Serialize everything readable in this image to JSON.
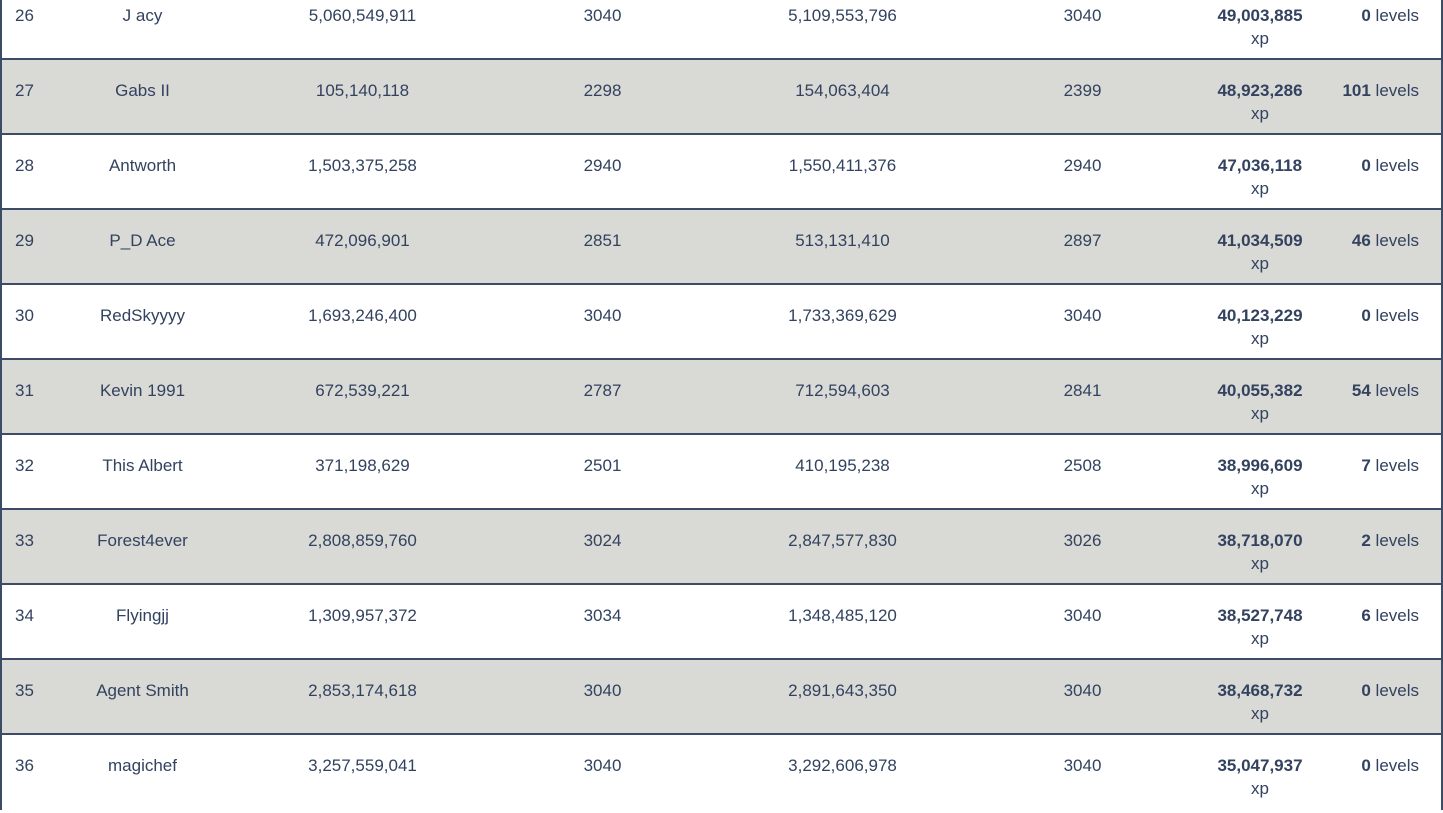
{
  "colors": {
    "text": "#32425f",
    "row_alt": "#d9d9d5",
    "border": "#3d4b66"
  },
  "table": {
    "xp_suffix": "xp",
    "levels_suffix": "levels",
    "rows": [
      {
        "rank": "26",
        "name": "J acy",
        "start_xp": "5,060,549,911",
        "start_level": "3040",
        "end_xp": "5,109,553,796",
        "end_level": "3040",
        "gained_xp": "49,003,885",
        "gained_levels": "0"
      },
      {
        "rank": "27",
        "name": "Gabs II",
        "start_xp": "105,140,118",
        "start_level": "2298",
        "end_xp": "154,063,404",
        "end_level": "2399",
        "gained_xp": "48,923,286",
        "gained_levels": "101"
      },
      {
        "rank": "28",
        "name": "Antworth",
        "start_xp": "1,503,375,258",
        "start_level": "2940",
        "end_xp": "1,550,411,376",
        "end_level": "2940",
        "gained_xp": "47,036,118",
        "gained_levels": "0"
      },
      {
        "rank": "29",
        "name": "P_D Ace",
        "start_xp": "472,096,901",
        "start_level": "2851",
        "end_xp": "513,131,410",
        "end_level": "2897",
        "gained_xp": "41,034,509",
        "gained_levels": "46"
      },
      {
        "rank": "30",
        "name": "RedSkyyyy",
        "start_xp": "1,693,246,400",
        "start_level": "3040",
        "end_xp": "1,733,369,629",
        "end_level": "3040",
        "gained_xp": "40,123,229",
        "gained_levels": "0"
      },
      {
        "rank": "31",
        "name": "Kevin 1991",
        "start_xp": "672,539,221",
        "start_level": "2787",
        "end_xp": "712,594,603",
        "end_level": "2841",
        "gained_xp": "40,055,382",
        "gained_levels": "54"
      },
      {
        "rank": "32",
        "name": "This Albert",
        "start_xp": "371,198,629",
        "start_level": "2501",
        "end_xp": "410,195,238",
        "end_level": "2508",
        "gained_xp": "38,996,609",
        "gained_levels": "7"
      },
      {
        "rank": "33",
        "name": "Forest4ever",
        "start_xp": "2,808,859,760",
        "start_level": "3024",
        "end_xp": "2,847,577,830",
        "end_level": "3026",
        "gained_xp": "38,718,070",
        "gained_levels": "2"
      },
      {
        "rank": "34",
        "name": "Flyingjj",
        "start_xp": "1,309,957,372",
        "start_level": "3034",
        "end_xp": "1,348,485,120",
        "end_level": "3040",
        "gained_xp": "38,527,748",
        "gained_levels": "6"
      },
      {
        "rank": "35",
        "name": "Agent Smith",
        "start_xp": "2,853,174,618",
        "start_level": "3040",
        "end_xp": "2,891,643,350",
        "end_level": "3040",
        "gained_xp": "38,468,732",
        "gained_levels": "0"
      },
      {
        "rank": "36",
        "name": "magichef",
        "start_xp": "3,257,559,041",
        "start_level": "3040",
        "end_xp": "3,292,606,978",
        "end_level": "3040",
        "gained_xp": "35,047,937",
        "gained_levels": "0"
      }
    ]
  }
}
